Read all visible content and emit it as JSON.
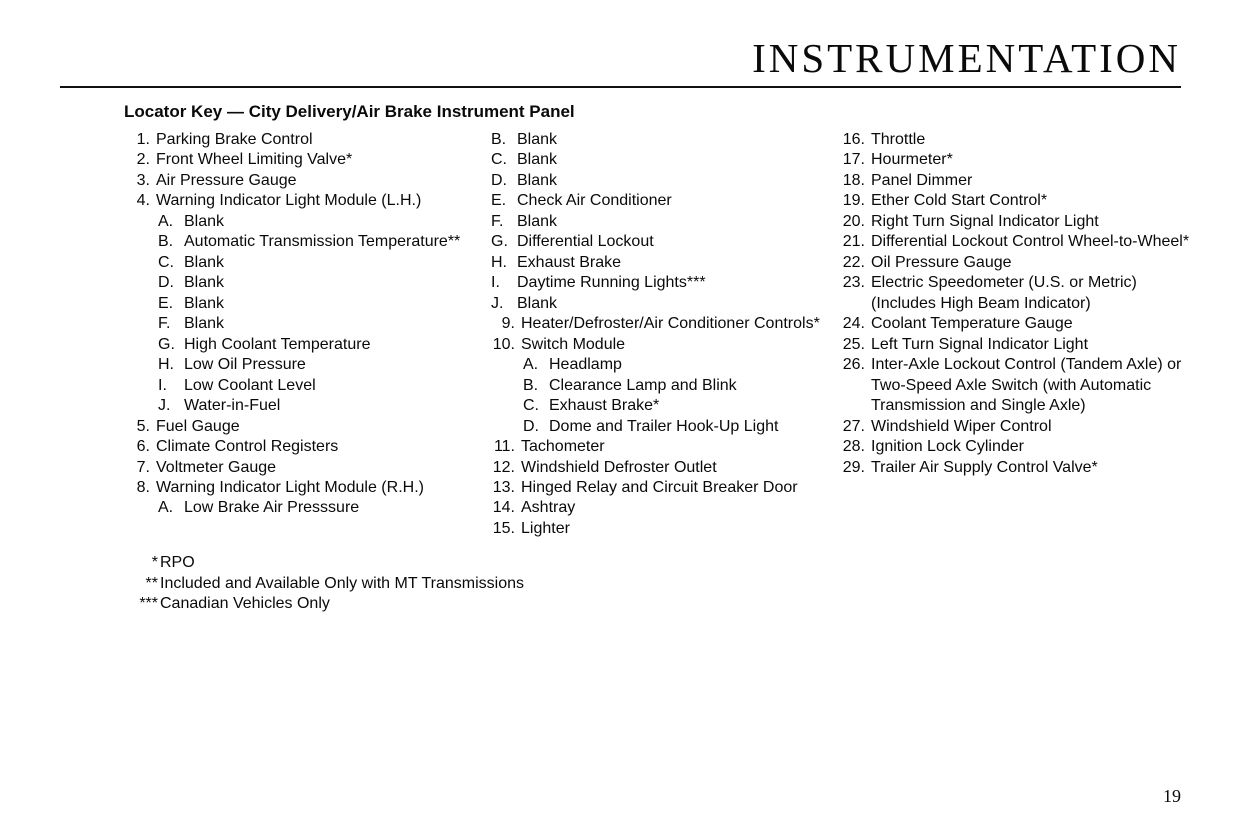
{
  "header_title": "INSTRUMENTATION",
  "subtitle": "Locator Key — City Delivery/Air Brake Instrument Panel",
  "page_number": "19",
  "footnotes": [
    {
      "mark": "*",
      "text": "RPO"
    },
    {
      "mark": "**",
      "text": "Included and Available Only with MT Transmissions"
    },
    {
      "mark": "***",
      "text": "Canadian Vehicles Only"
    }
  ],
  "col1": [
    {
      "n": "1.",
      "text": "Parking Brake Control"
    },
    {
      "n": "2.",
      "text": "Front Wheel Limiting Valve*"
    },
    {
      "n": "3.",
      "text": "Air Pressure Gauge"
    },
    {
      "n": "4.",
      "text": "Warning Indicator Light Module (L.H.)",
      "sub": [
        {
          "a": "A.",
          "text": "Blank"
        },
        {
          "a": "B.",
          "text": "Automatic Transmission Temperature**"
        },
        {
          "a": "C.",
          "text": "Blank"
        },
        {
          "a": "D.",
          "text": "Blank"
        },
        {
          "a": "E.",
          "text": "Blank"
        },
        {
          "a": "F.",
          "text": "Blank"
        },
        {
          "a": "G.",
          "text": "High Coolant Temperature"
        },
        {
          "a": "H.",
          "text": "Low Oil Pressure"
        },
        {
          "a": "I.",
          "text": "Low Coolant Level"
        },
        {
          "a": "J.",
          "text": "Water-in-Fuel"
        }
      ]
    },
    {
      "n": "5.",
      "text": "Fuel Gauge"
    },
    {
      "n": "6.",
      "text": "Climate Control Registers"
    },
    {
      "n": "7.",
      "text": "Voltmeter Gauge"
    },
    {
      "n": "8.",
      "text": "Warning Indicator Light Module (R.H.)",
      "sub": [
        {
          "a": "A.",
          "text": "Low Brake Air Presssure"
        }
      ]
    }
  ],
  "col2_cont8": [
    {
      "a": "B.",
      "text": "Blank"
    },
    {
      "a": "C.",
      "text": "Blank"
    },
    {
      "a": "D.",
      "text": "Blank"
    },
    {
      "a": "E.",
      "text": "Check Air Conditioner"
    },
    {
      "a": "F.",
      "text": "Blank"
    },
    {
      "a": "G.",
      "text": "Differential Lockout"
    },
    {
      "a": "H.",
      "text": "Exhaust Brake"
    },
    {
      "a": "I.",
      "text": "Daytime Running Lights***"
    },
    {
      "a": "J.",
      "text": "Blank"
    }
  ],
  "col2": [
    {
      "n": "9.",
      "text": "Heater/Defroster/Air Conditioner Controls*"
    },
    {
      "n": "10.",
      "text": "Switch Module",
      "sub": [
        {
          "a": "A.",
          "text": "Headlamp"
        },
        {
          "a": "B.",
          "text": "Clearance Lamp and Blink"
        },
        {
          "a": "C.",
          "text": "Exhaust Brake*"
        },
        {
          "a": "D.",
          "text": "Dome and Trailer Hook-Up Light"
        }
      ]
    },
    {
      "n": "11.",
      "text": "Tachometer"
    },
    {
      "n": "12.",
      "text": "Windshield Defroster Outlet"
    },
    {
      "n": "13.",
      "text": "Hinged Relay and Circuit Breaker Door"
    },
    {
      "n": "14.",
      "text": "Ashtray"
    },
    {
      "n": "15.",
      "text": "Lighter"
    }
  ],
  "col3": [
    {
      "n": "16.",
      "text": "Throttle"
    },
    {
      "n": "17.",
      "text": "Hourmeter*"
    },
    {
      "n": "18.",
      "text": "Panel Dimmer"
    },
    {
      "n": "19.",
      "text": "Ether Cold Start Control*"
    },
    {
      "n": "20.",
      "text": "Right Turn Signal Indicator Light"
    },
    {
      "n": "21.",
      "text": "Differential Lockout Control Wheel-to-Wheel*"
    },
    {
      "n": "22.",
      "text": "Oil Pressure Gauge"
    },
    {
      "n": "23.",
      "text": "Electric Speedometer (U.S. or Metric) (Includes High Beam Indicator)"
    },
    {
      "n": "24.",
      "text": "Coolant Temperature Gauge"
    },
    {
      "n": "25.",
      "text": "Left Turn Signal Indicator Light"
    },
    {
      "n": "26.",
      "text": "Inter-Axle Lockout Control (Tandem Axle) or Two-Speed Axle Switch (with Automatic Transmission and Single Axle)"
    },
    {
      "n": "27.",
      "text": "Windshield Wiper Control"
    },
    {
      "n": "28.",
      "text": "Ignition Lock Cylinder"
    },
    {
      "n": "29.",
      "text": "Trailer Air Supply Control Valve*"
    }
  ]
}
